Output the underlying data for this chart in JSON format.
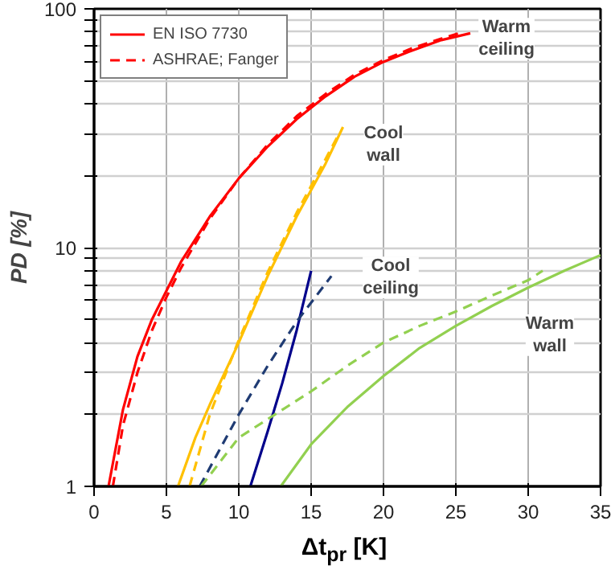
{
  "chart_data": {
    "type": "line",
    "xlabel": "Δt$_{pr}$ [K]",
    "ylabel": "PD [%]",
    "log": "y",
    "xlim": [
      0,
      35
    ],
    "ylim": [
      1,
      100
    ],
    "xticks": [
      0,
      5,
      10,
      15,
      20,
      25,
      30,
      35
    ],
    "yticks": [
      1,
      {
        "value": 2,
        "label": null
      },
      {
        "value": 3,
        "label": null
      },
      {
        "value": 4,
        "label": null
      },
      {
        "value": 5,
        "label": null
      },
      {
        "value": 6,
        "label": null
      },
      {
        "value": 7,
        "label": null
      },
      {
        "value": 8,
        "label": null
      },
      {
        "value": 9,
        "label": null
      },
      10,
      {
        "value": 20,
        "label": null
      },
      {
        "value": 30,
        "label": null
      },
      {
        "value": 40,
        "label": null
      },
      {
        "value": 50,
        "label": null
      },
      {
        "value": 60,
        "label": null
      },
      {
        "value": 70,
        "label": null
      },
      {
        "value": 80,
        "label": null
      },
      {
        "value": 90,
        "label": null
      },
      100
    ],
    "grid": true,
    "legend": "top left",
    "marker": "none",
    "series": [
      {
        "name": "EN ISO 7730",
        "color": "#ff0000",
        "line_style": "solid",
        "x": [
          1,
          2,
          3,
          4,
          6,
          8,
          10,
          12,
          14,
          16,
          18,
          20,
          22,
          24,
          26
        ],
        "values": [
          1,
          2.1,
          3.5,
          5,
          8.7,
          13.5,
          19.5,
          26.5,
          34.5,
          43,
          52,
          60,
          67,
          74,
          79
        ]
      },
      {
        "name": "ASHRAE; Fanger",
        "color": "#ff0000",
        "line_style": "dashed",
        "x": [
          1.3,
          2,
          3,
          4,
          5,
          6,
          8,
          10,
          12,
          14,
          16,
          18,
          20,
          22,
          24,
          25.5
        ],
        "values": [
          1,
          1.8,
          3,
          4.5,
          6.2,
          8.2,
          13.2,
          19.5,
          27,
          35.5,
          44,
          53,
          61,
          68.5,
          75,
          80
        ]
      },
      {
        "color": "#ffc000",
        "line_style": "solid",
        "x": [
          5.8,
          7,
          8,
          10,
          12,
          14,
          16,
          17.2
        ],
        "values": [
          1,
          1.6,
          2.2,
          4,
          7.6,
          13.5,
          22.5,
          32
        ]
      },
      {
        "color": "#ffc000",
        "line_style": "dashed",
        "x": [
          6.6,
          8,
          10,
          12,
          14,
          16,
          16.8
        ],
        "values": [
          1,
          2,
          4.1,
          7.9,
          14,
          23.5,
          29
        ]
      },
      {
        "color": "#00008b",
        "line_style": "solid",
        "x": [
          10.8,
          12,
          13,
          14,
          15
        ],
        "values": [
          1,
          1.7,
          2.7,
          4.5,
          8
        ]
      },
      {
        "color": "#1f3b73",
        "line_style": "dashed",
        "x": [
          7.3,
          10,
          12,
          14,
          16.4
        ],
        "values": [
          1,
          2,
          3.2,
          4.9,
          7.6
        ]
      },
      {
        "color": "#92d050",
        "line_style": "solid",
        "x": [
          12.9,
          15,
          17.5,
          20,
          22.5,
          25,
          27.5,
          30,
          32.5,
          35
        ],
        "values": [
          1,
          1.5,
          2.15,
          2.9,
          3.8,
          4.7,
          5.7,
          6.8,
          8,
          9.3
        ]
      },
      {
        "color": "#92d050",
        "line_style": "dashed",
        "x": [
          7.4,
          10,
          12.5,
          15,
          17.5,
          20,
          22.5,
          25,
          27.5,
          30,
          31
        ],
        "values": [
          1,
          1.6,
          2,
          2.5,
          3.2,
          4,
          4.7,
          5.4,
          6.3,
          7.3,
          8
        ]
      }
    ],
    "annotations": [
      {
        "text": "Warm\nceiling",
        "x": 28.5,
        "y": 75
      },
      {
        "text": "Cool\nwall",
        "x": 20,
        "y": 27
      },
      {
        "text": "Cool\nceiling",
        "x": 20.5,
        "y": 7.5
      },
      {
        "text": "Warm\nwall",
        "x": 31.5,
        "y": 4.3
      }
    ]
  }
}
